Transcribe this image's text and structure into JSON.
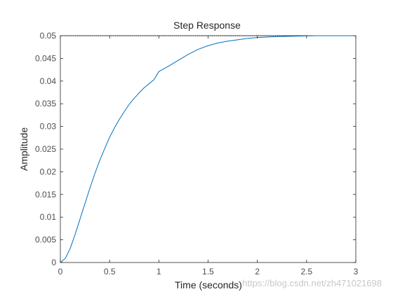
{
  "chart_data": {
    "type": "line",
    "title": "Step Response",
    "xlabel": "Time (seconds)",
    "ylabel": "Amplitude",
    "xlim": [
      0,
      3
    ],
    "ylim": [
      0,
      0.05
    ],
    "xticks": [
      0,
      0.5,
      1,
      1.5,
      2,
      2.5,
      3
    ],
    "xtick_labels": [
      "0",
      "0.5",
      "1",
      "1.5",
      "2",
      "2.5",
      "3"
    ],
    "yticks": [
      0,
      0.005,
      0.01,
      0.015,
      0.02,
      0.025,
      0.03,
      0.035,
      0.04,
      0.045,
      0.05
    ],
    "ytick_labels": [
      "0",
      "0.005",
      "0.01",
      "0.015",
      "0.02",
      "0.025",
      "0.03",
      "0.035",
      "0.04",
      "0.045",
      "0.05"
    ],
    "grid": false,
    "steady_state": 0.05,
    "series": [
      {
        "color": "#0072bd",
        "x": [
          0,
          0.05,
          0.1,
          0.15,
          0.2,
          0.25,
          0.3,
          0.35,
          0.4,
          0.45,
          0.5,
          0.55,
          0.6,
          0.65,
          0.7,
          0.75,
          0.8,
          0.85,
          0.9,
          0.95,
          1.0,
          1.1,
          1.2,
          1.3,
          1.4,
          1.5,
          1.6,
          1.7,
          1.8,
          1.9,
          2.0,
          2.2,
          2.4,
          2.6,
          2.8,
          3.0
        ],
        "y": [
          0,
          0.0009,
          0.0031,
          0.0062,
          0.0096,
          0.013,
          0.0164,
          0.0196,
          0.0225,
          0.0251,
          0.0276,
          0.0297,
          0.0316,
          0.0333,
          0.0349,
          0.0362,
          0.0374,
          0.0385,
          0.0394,
          0.0403,
          0.0421,
          0.0433,
          0.0446,
          0.0459,
          0.047,
          0.0478,
          0.0484,
          0.0488,
          0.0491,
          0.0494,
          0.0496,
          0.0498,
          0.0499,
          0.05,
          0.05,
          0.05
        ]
      }
    ],
    "color_reference_line": "#000000"
  },
  "watermark": "https://blog.csdn.net/zh471021698"
}
